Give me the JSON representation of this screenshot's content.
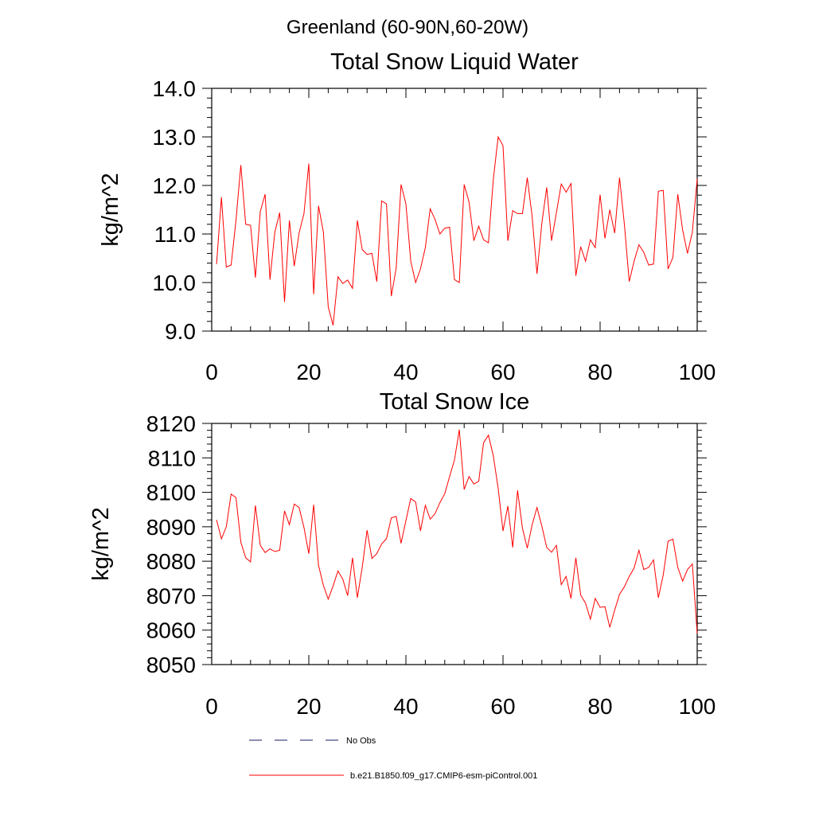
{
  "figure": {
    "suptitle": "Greenland (60-90N,60-20W)"
  },
  "legend": {
    "placement": "bottom",
    "entries": [
      {
        "label": "No Obs",
        "style": "dashed",
        "color": "#1a1a66"
      },
      {
        "label": "b.e21.B1850.f09_g17.CMIP6-esm-piControl.001",
        "style": "solid",
        "color": "#ff0000"
      }
    ]
  },
  "chart_data": [
    {
      "type": "line",
      "title": "Total Snow Liquid Water",
      "xlabel": "",
      "ylabel": "kg/m^2",
      "xlim": [
        0,
        100
      ],
      "ylim": [
        9.0,
        14.0
      ],
      "xticks": [
        0,
        20,
        40,
        60,
        80,
        100
      ],
      "xtick_labels": [
        "0",
        "20",
        "40",
        "60",
        "80",
        "100"
      ],
      "yticks": [
        9.0,
        10.0,
        11.0,
        12.0,
        13.0,
        14.0
      ],
      "ytick_labels": [
        "9.0",
        "10.0",
        "11.0",
        "12.0",
        "13.0",
        "14.0"
      ],
      "grid": false,
      "series": [
        {
          "color": "#ff0000",
          "x": [
            1,
            2,
            3,
            4,
            5,
            6,
            7,
            8,
            9,
            10,
            11,
            12,
            13,
            14,
            15,
            16,
            17,
            18,
            19,
            20,
            21,
            22,
            23,
            24,
            25,
            26,
            27,
            28,
            29,
            30,
            31,
            32,
            33,
            34,
            35,
            36,
            37,
            38,
            39,
            40,
            41,
            42,
            43,
            44,
            45,
            46,
            47,
            48,
            49,
            50,
            51,
            52,
            53,
            54,
            55,
            56,
            57,
            58,
            59,
            60,
            61,
            62,
            63,
            64,
            65,
            66,
            67,
            68,
            69,
            70,
            71,
            72,
            73,
            74,
            75,
            76,
            77,
            78,
            79,
            80,
            81,
            82,
            83,
            84,
            85,
            86,
            87,
            88,
            89,
            90,
            91,
            92,
            93,
            94,
            95,
            96,
            97,
            98,
            99,
            100
          ],
          "values": [
            10.38,
            11.76,
            10.32,
            10.36,
            11.28,
            12.42,
            11.2,
            11.18,
            10.1,
            11.46,
            11.82,
            10.06,
            11.04,
            11.44,
            9.6,
            11.28,
            10.34,
            11.02,
            11.42,
            12.45,
            9.76,
            11.58,
            11.04,
            9.5,
            9.12,
            10.12,
            9.98,
            10.05,
            9.88,
            11.28,
            10.68,
            10.58,
            10.6,
            10.02,
            11.68,
            11.62,
            9.72,
            10.3,
            12.02,
            11.62,
            10.44,
            10.0,
            10.28,
            10.72,
            11.52,
            11.3,
            11.0,
            11.12,
            11.14,
            10.06,
            10.0,
            12.02,
            11.66,
            10.86,
            11.16,
            10.88,
            10.82,
            12.12,
            13.0,
            12.82,
            10.86,
            11.48,
            11.42,
            11.42,
            12.16,
            11.36,
            10.18,
            11.22,
            11.96,
            10.86,
            11.44,
            12.03,
            11.86,
            12.04,
            10.14,
            10.74,
            10.44,
            10.88,
            10.72,
            11.81,
            10.91,
            11.5,
            11.02,
            12.16,
            11.2,
            10.02,
            10.44,
            10.78,
            10.62,
            10.36,
            10.38,
            11.88,
            11.9,
            10.28,
            10.52,
            11.82,
            11.08,
            10.6,
            11.04,
            12.14
          ]
        }
      ]
    },
    {
      "type": "line",
      "title": "Total Snow Ice",
      "xlabel": "",
      "ylabel": "kg/m^2",
      "xlim": [
        0,
        100
      ],
      "ylim": [
        8050,
        8120
      ],
      "xticks": [
        0,
        20,
        40,
        60,
        80,
        100
      ],
      "xtick_labels": [
        "0",
        "20",
        "40",
        "60",
        "80",
        "100"
      ],
      "yticks": [
        8050,
        8060,
        8070,
        8080,
        8090,
        8100,
        8110,
        8120
      ],
      "ytick_labels": [
        "8050",
        "8060",
        "8070",
        "8080",
        "8090",
        "8100",
        "8110",
        "8120"
      ],
      "grid": false,
      "series": [
        {
          "color": "#ff0000",
          "x": [
            1,
            2,
            3,
            4,
            5,
            6,
            7,
            8,
            9,
            10,
            11,
            12,
            13,
            14,
            15,
            16,
            17,
            18,
            19,
            20,
            21,
            22,
            23,
            24,
            25,
            26,
            27,
            28,
            29,
            30,
            31,
            32,
            33,
            34,
            35,
            36,
            37,
            38,
            39,
            40,
            41,
            42,
            43,
            44,
            45,
            46,
            47,
            48,
            49,
            50,
            51,
            52,
            53,
            54,
            55,
            56,
            57,
            58,
            59,
            60,
            61,
            62,
            63,
            64,
            65,
            66,
            67,
            68,
            69,
            70,
            71,
            72,
            73,
            74,
            75,
            76,
            77,
            78,
            79,
            80,
            81,
            82,
            83,
            84,
            85,
            86,
            87,
            88,
            89,
            90,
            91,
            92,
            93,
            94,
            95,
            96,
            97,
            98,
            99,
            100
          ],
          "values": [
            8092,
            8086.5,
            8090,
            8099.5,
            8098.5,
            8085.5,
            8081,
            8079.8,
            8096.2,
            8084.6,
            8082.5,
            8083.6,
            8082.8,
            8083.2,
            8094.6,
            8090.6,
            8096.6,
            8095.6,
            8089.8,
            8082.2,
            8096.4,
            8078.8,
            8073,
            8069,
            8072.8,
            8077.2,
            8074.8,
            8070,
            8081,
            8069.4,
            8078.2,
            8089,
            8080.8,
            8082.2,
            8085,
            8086.6,
            8092.6,
            8093,
            8085.2,
            8091.8,
            8098.2,
            8097.2,
            8088.8,
            8096.2,
            8092.2,
            8093.8,
            8097,
            8099.6,
            8104.6,
            8109.4,
            8118.2,
            8100.8,
            8104.6,
            8102.4,
            8103.2,
            8114.4,
            8116.6,
            8110.6,
            8101.2,
            8088.8,
            8096,
            8084,
            8100.6,
            8089.6,
            8083.8,
            8090.6,
            8095.6,
            8090.2,
            8084,
            8082.6,
            8084.6,
            8073.2,
            8075.6,
            8069.2,
            8081,
            8070.2,
            8067.8,
            8063.2,
            8069.2,
            8066.6,
            8066.8,
            8060.8,
            8065.8,
            8070.4,
            8072.6,
            8075.6,
            8078,
            8083.2,
            8077.6,
            8078.2,
            8080.4,
            8069.4,
            8076,
            8085.8,
            8086.4,
            8078.2,
            8074.2,
            8077.6,
            8079.2,
            8059
          ]
        }
      ]
    }
  ]
}
